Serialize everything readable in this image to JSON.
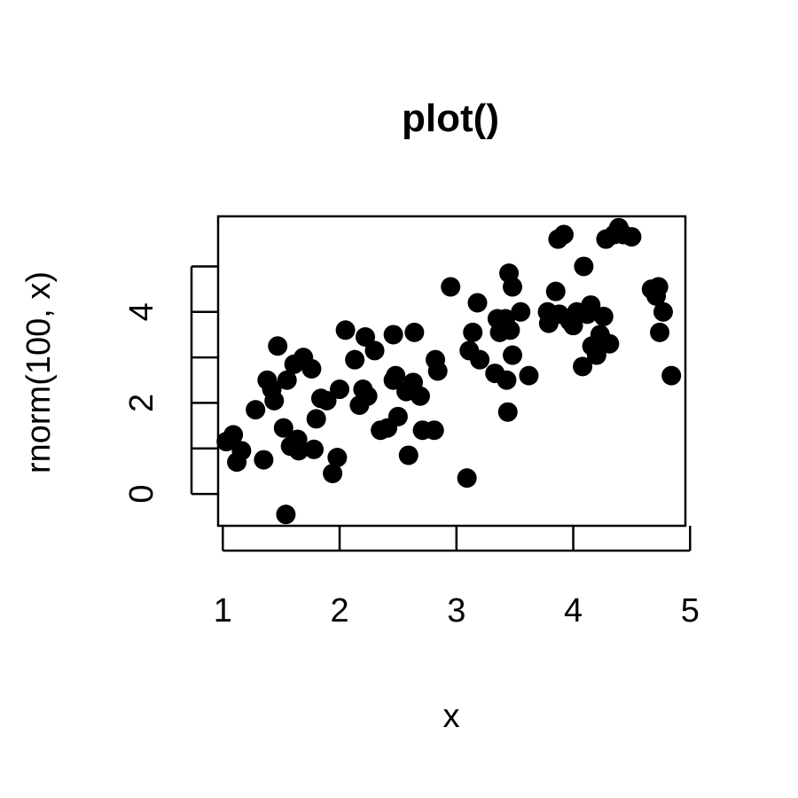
{
  "chart_data": {
    "type": "scatter",
    "title": "plot()",
    "xlabel": "x",
    "ylabel": "rnorm(100, x)",
    "xlim": [
      0.96,
      4.96
    ],
    "ylim": [
      -0.7,
      6.1
    ],
    "xticks": [
      1,
      2,
      3,
      4,
      5
    ],
    "xtick_labels": [
      "1",
      "2",
      "3",
      "4",
      "5"
    ],
    "yticks": [
      0,
      1,
      2,
      3,
      4,
      5
    ],
    "ytick_labels": [
      "0",
      "",
      "2",
      "",
      "4",
      ""
    ],
    "grid": false,
    "point_color": "#000000",
    "points": [
      [
        1.03,
        1.15
      ],
      [
        1.09,
        1.3
      ],
      [
        1.12,
        0.7
      ],
      [
        1.16,
        0.95
      ],
      [
        1.28,
        1.85
      ],
      [
        1.35,
        0.75
      ],
      [
        1.38,
        2.5
      ],
      [
        1.42,
        2.3
      ],
      [
        1.44,
        2.05
      ],
      [
        1.47,
        3.25
      ],
      [
        1.52,
        1.45
      ],
      [
        1.55,
        2.5
      ],
      [
        1.54,
        -0.45
      ],
      [
        1.58,
        1.05
      ],
      [
        1.61,
        2.85
      ],
      [
        1.64,
        1.2
      ],
      [
        1.65,
        0.95
      ],
      [
        1.69,
        3.0
      ],
      [
        1.76,
        2.75
      ],
      [
        1.78,
        0.98
      ],
      [
        1.8,
        1.65
      ],
      [
        1.84,
        2.1
      ],
      [
        1.89,
        2.05
      ],
      [
        1.94,
        0.45
      ],
      [
        1.98,
        0.8
      ],
      [
        2.0,
        2.3
      ],
      [
        2.05,
        3.6
      ],
      [
        2.13,
        2.95
      ],
      [
        2.17,
        1.95
      ],
      [
        2.2,
        2.3
      ],
      [
        2.22,
        3.45
      ],
      [
        2.24,
        2.15
      ],
      [
        2.3,
        3.15
      ],
      [
        2.35,
        1.4
      ],
      [
        2.41,
        1.45
      ],
      [
        2.46,
        2.5
      ],
      [
        2.46,
        3.5
      ],
      [
        2.48,
        2.6
      ],
      [
        2.5,
        1.7
      ],
      [
        2.57,
        2.25
      ],
      [
        2.59,
        0.85
      ],
      [
        2.63,
        2.45
      ],
      [
        2.64,
        3.55
      ],
      [
        2.69,
        2.15
      ],
      [
        2.71,
        1.4
      ],
      [
        2.81,
        1.4
      ],
      [
        2.82,
        2.95
      ],
      [
        2.84,
        2.7
      ],
      [
        2.95,
        4.55
      ],
      [
        3.09,
        0.35
      ],
      [
        3.11,
        3.15
      ],
      [
        3.14,
        3.55
      ],
      [
        3.18,
        4.2
      ],
      [
        3.2,
        2.95
      ],
      [
        3.33,
        2.65
      ],
      [
        3.35,
        3.85
      ],
      [
        3.37,
        3.55
      ],
      [
        3.42,
        3.85
      ],
      [
        3.43,
        2.5
      ],
      [
        3.45,
        4.85
      ],
      [
        3.44,
        1.8
      ],
      [
        3.46,
        3.6
      ],
      [
        3.48,
        4.55
      ],
      [
        3.48,
        3.05
      ],
      [
        3.55,
        4.0
      ],
      [
        3.62,
        2.6
      ],
      [
        3.78,
        4.0
      ],
      [
        3.79,
        3.75
      ],
      [
        3.85,
        4.45
      ],
      [
        3.87,
        5.6
      ],
      [
        3.88,
        3.95
      ],
      [
        3.92,
        5.7
      ],
      [
        3.97,
        3.8
      ],
      [
        4.0,
        3.7
      ],
      [
        4.03,
        4.0
      ],
      [
        4.08,
        2.8
      ],
      [
        4.09,
        5.0
      ],
      [
        4.12,
        3.95
      ],
      [
        4.15,
        4.15
      ],
      [
        4.16,
        3.25
      ],
      [
        4.2,
        3.05
      ],
      [
        4.23,
        3.5
      ],
      [
        4.26,
        3.9
      ],
      [
        4.28,
        5.6
      ],
      [
        4.31,
        3.3
      ],
      [
        4.35,
        5.7
      ],
      [
        4.39,
        5.85
      ],
      [
        4.43,
        5.7
      ],
      [
        4.5,
        5.65
      ],
      [
        4.67,
        4.5
      ],
      [
        4.71,
        4.35
      ],
      [
        4.73,
        4.55
      ],
      [
        4.74,
        3.55
      ],
      [
        4.77,
        4.0
      ],
      [
        4.84,
        2.6
      ]
    ]
  }
}
